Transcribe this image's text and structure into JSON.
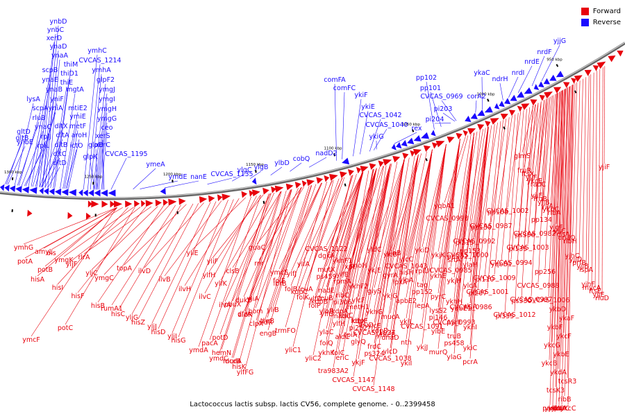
{
  "caption": "Lactococcus lactis subsp. lactis CV56, complete genome. - 0..2399458",
  "legend": [
    {
      "label": "Forward",
      "color": "#e8000b"
    },
    {
      "label": "Reverse",
      "color": "#1a0aff"
    }
  ],
  "colors": {
    "forward": "#e8000b",
    "reverse": "#1a0aff",
    "backbone": "#666666"
  },
  "ticks": [
    "1300 kbp",
    "1250 kbp",
    "1200 kbp",
    "1150 kbp",
    "1100 kbp",
    "1050 kbp",
    "1000 kbp",
    "950 kbp"
  ],
  "reverse_labels": [
    "ynbD",
    "ynbC",
    "xerD",
    "ynaD",
    "ynaA",
    "thiM",
    "thiD1",
    "scpB",
    "thiE",
    "ynaE",
    "ynaB",
    "mgtA",
    "lysA",
    "yniF",
    "yniA",
    "scpA",
    "mtiE2",
    "rluB",
    "ymiE",
    "metF",
    "ynaC",
    "dltX",
    "dltA",
    "aroH",
    "gltB",
    "rplJ",
    "gltD",
    "dltB",
    "ictO",
    "ymhC",
    "CVCAS_1214",
    "ymhA",
    "glpF2",
    "ymgJ",
    "ymgI",
    "ymgH",
    "ymgG",
    "ceo",
    "xerS",
    "xerC",
    "glpD",
    "glpK",
    "ynbE",
    "rplL",
    "dltC",
    "dltD",
    "CVCAS_1195",
    "ymeA",
    "ymdE",
    "nanE",
    "CVCAS_1135",
    "ylgC",
    "ylgB",
    "ylbD",
    "cobQ",
    "nadD2",
    "comFA",
    "comFC",
    "ykiF",
    "ykiE",
    "CVCAS_1042",
    "CVCAS_1040",
    "ykiG",
    "rex",
    "pp102",
    "pp101",
    "CVCAS_0969",
    "pi203",
    "pi204",
    "corA2",
    "ykaC",
    "ndrH",
    "nrdI",
    "nrdE",
    "nrdF",
    "yjjG"
  ],
  "forward_labels": [
    "ymhG",
    "amyL",
    "ymgK",
    "rlrA",
    "ymgC",
    "topA",
    "ilvD",
    "ilvB",
    "ilvH",
    "ilvC",
    "ilvA",
    "aldR",
    "aldR",
    "trmFO",
    "leuA",
    "leuB",
    "leuC",
    "leuD",
    "ymeB",
    "hisH",
    "hisA",
    "hisI",
    "hisF",
    "hisB",
    "hisC",
    "hisZ",
    "hisD",
    "hisG",
    "ymdA",
    "ymdC",
    "hisK",
    "rnr",
    "ymcE",
    "kdpC",
    "kdpB",
    "kdpA",
    "kdpE",
    "kdpD",
    "lpxA",
    "ymcF",
    "als",
    "yljF",
    "yljC",
    "rumA1",
    "yljG",
    "yljJ",
    "yljI",
    "yliE",
    "yliF",
    "clsB",
    "yliA",
    "yliB",
    "yliC1",
    "yliC2",
    "tra983A2",
    "CVCAS_1147",
    "CVCAS_1148",
    "ylhB",
    "potA",
    "potB",
    "potC",
    "potD",
    "murB",
    "dukB",
    "hom",
    "thrB",
    "folE",
    "folB",
    "folK",
    "folP",
    "folQ",
    "folC",
    "xpt",
    "ylfH",
    "ylfK",
    "pbuX",
    "dfrA",
    "clpX",
    "engB",
    "lbrB",
    "ylfJ",
    "ylfA",
    "ylfD",
    "ylfG",
    "ylfH",
    "tpiA",
    "pacA",
    "hemN",
    "dcdA",
    "ylfFG",
    "guaC",
    "CVCAS_1122",
    "ylfE",
    "ylcF",
    "ylcE",
    "ylcD",
    "ylcC",
    "tag",
    "lysS2",
    "truB",
    "pcrA",
    "mutX",
    "ribC",
    "ldhX",
    "frdC",
    "ylcB",
    "ylbA",
    "lepA",
    "ylbE",
    "ylaG",
    "ylaH",
    "nadE",
    "nadC",
    "glyQ",
    "yldC",
    "gyrA",
    "apbE2",
    "CVCAS_1091",
    "murQ",
    "srtA",
    "ylcA",
    "ylbB",
    "aldC",
    "ykjF",
    "ykjE",
    "ykjG",
    "ykjL",
    "ykjJ",
    "ykjK",
    "ykjH",
    "ykjA",
    "ylaC",
    "eriC",
    "phoH",
    "glyS",
    "mucA",
    "nth",
    "ykiD",
    "ykhE",
    "ykhH",
    "ykhI",
    "ykhK",
    "ykhF1",
    "ykhF2",
    "ykhG",
    "dnaD",
    "ykiI",
    "rplU",
    "pyrC",
    "pyrE",
    "ykiC",
    "dgkA",
    "rpmA",
    "mntH1",
    "CVCAS_1037",
    "CVCAS_1038",
    "CVCAS_1043",
    "pp152",
    "pi146",
    "ps458",
    "pp153",
    "ps459",
    "pi306",
    "pi252",
    "ps324",
    "yqbA1",
    "pi215",
    "pi110",
    "pi355",
    "ps356",
    "pp256",
    "yqbE1",
    "pp130",
    "yqbB1",
    "ps330",
    "pp134",
    "pp252",
    "pi207",
    "pp108",
    "pi135",
    "CVCAS_0988",
    "CVCAS_0993",
    "CVCAS_0992",
    "CVCAS_1009",
    "CVCAS_1012",
    "CVCAS_0982",
    "CVCAS_0985",
    "CVCAS_0986",
    "CVCAS_0987",
    "CVCAS_0994",
    "CVCAS_0997",
    "CVCAS_0998",
    "CVCAS_1000",
    "CVCAS_1001",
    "CVCAS_1002",
    "CVCAS_1003",
    "CVCAS_1006",
    "ykbD",
    "ykaF",
    "ykbF",
    "ykcF",
    "ykcG",
    "ykbE",
    "ykcB",
    "ykdA",
    "tcsR3",
    "tcsK3",
    "ribB",
    "ykbA",
    "parC",
    "parE",
    "ykcA",
    "ykcC",
    "ykdB",
    "glmS",
    "radC",
    "ribA",
    "ribH",
    "lspA",
    "rluD",
    "ykcE",
    "ykbC",
    "dnaQ",
    "yjiB",
    "yjjE",
    "yjjF",
    "yjjA",
    "clsA",
    "prfB",
    "ftsE",
    "ftsX",
    "yjjB",
    "yjjC",
    "yjjD",
    "mycA",
    "fruR",
    "fruB",
    "yjgF",
    "yjhC",
    "yjhF",
    "yjiF",
    "yjiE"
  ]
}
